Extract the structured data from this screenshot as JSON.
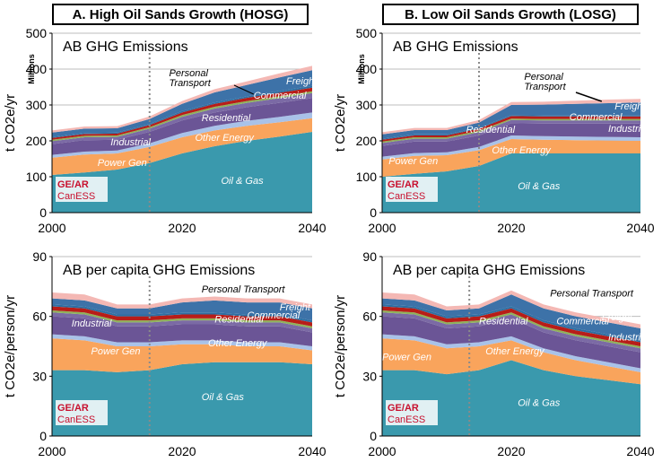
{
  "panel_titles": {
    "a": "A. High Oil Sands Growth (HOSG)",
    "b": "B. Low Oil Sands Growth (LOSG)"
  },
  "logo": {
    "line1": "GE/AR",
    "line2": "CanESS"
  },
  "colors": {
    "oil_gas": "#3a99ad",
    "power_gen": "#f9a45c",
    "other_energy": "#a9c2e8",
    "industrial": "#6b5596",
    "residential": "#7b6aa5",
    "green": "#8fb25a",
    "red": "#b81d18",
    "commercial": "#2e6fa2",
    "freight": "#3d72a8",
    "personal_transport": "#f4b8b4"
  },
  "chart_data": [
    {
      "id": "A-top",
      "type": "area",
      "stacked": true,
      "title": "AB GHG Emissions",
      "ylabel": "t CO2e/yr",
      "yunit": "Millions",
      "xlim": [
        2000,
        2040
      ],
      "ylim": [
        0,
        500
      ],
      "xticks": [
        2000,
        2020,
        2040
      ],
      "yticks": [
        0,
        100,
        200,
        300,
        400,
        500
      ],
      "vline_x": 2015,
      "x": [
        2000,
        2005,
        2010,
        2015,
        2020,
        2025,
        2030,
        2035,
        2040
      ],
      "series": [
        {
          "name": "Oil & Gas",
          "values": [
            105,
            112,
            120,
            138,
            165,
            185,
            200,
            212,
            225
          ]
        },
        {
          "name": "Power Gen",
          "values": [
            48,
            50,
            45,
            45,
            45,
            44,
            42,
            40,
            38
          ]
        },
        {
          "name": "Other Energy",
          "values": [
            8,
            8,
            8,
            10,
            12,
            13,
            14,
            15,
            16
          ]
        },
        {
          "name": "Industrial",
          "values": [
            30,
            32,
            30,
            32,
            35,
            37,
            38,
            39,
            40
          ]
        },
        {
          "name": "Residential",
          "values": [
            8,
            8,
            8,
            9,
            10,
            11,
            12,
            13,
            14
          ]
        },
        {
          "name": "",
          "values": [
            4,
            4,
            4,
            4,
            5,
            5,
            5,
            5,
            5
          ]
        },
        {
          "name": "",
          "values": [
            5,
            5,
            5,
            6,
            7,
            8,
            9,
            10,
            10
          ]
        },
        {
          "name": "Commercial",
          "values": [
            3,
            3,
            3,
            3,
            4,
            4,
            4,
            5,
            5
          ]
        },
        {
          "name": "Freight",
          "values": [
            12,
            12,
            12,
            14,
            20,
            28,
            32,
            38,
            44
          ]
        },
        {
          "name": "Personal Transport",
          "values": [
            6,
            6,
            6,
            7,
            8,
            9,
            10,
            11,
            12
          ]
        }
      ],
      "labels": [
        {
          "text": "Oil & Gas",
          "x": 2026,
          "y": 80,
          "color": "#ffffff"
        },
        {
          "text": "Power Gen",
          "x": 2007,
          "y": 130,
          "color": "#ffffff"
        },
        {
          "text": "Other Energy",
          "x": 2022,
          "y": 200,
          "color": "#ffffff"
        },
        {
          "text": "Industrial",
          "x": 2009,
          "y": 188,
          "color": "#ffffff"
        },
        {
          "text": "Residential",
          "x": 2023,
          "y": 255,
          "color": "#ffffff"
        },
        {
          "text": "Commercial",
          "x": 2031,
          "y": 318,
          "color": "#ffffff"
        },
        {
          "text": "Freight",
          "x": 2036,
          "y": 358,
          "color": "#ffffff"
        },
        {
          "text": "Personal",
          "x": 2018,
          "y": 380,
          "color": "#000000"
        },
        {
          "text": "Transport",
          "x": 2018,
          "y": 352,
          "color": "#000000"
        }
      ]
    },
    {
      "id": "B-top",
      "type": "area",
      "stacked": true,
      "title": "AB GHG Emissions",
      "ylabel": "t CO2e/yr",
      "yunit": "Millions",
      "xlim": [
        2000,
        2040
      ],
      "ylim": [
        0,
        500
      ],
      "xticks": [
        2000,
        2020,
        2040
      ],
      "yticks": [
        0,
        100,
        200,
        300,
        400,
        500
      ],
      "vline_x": 2015,
      "x": [
        2000,
        2005,
        2010,
        2015,
        2020,
        2025,
        2030,
        2035,
        2040
      ],
      "series": [
        {
          "name": "Oil & Gas",
          "values": [
            100,
            108,
            115,
            130,
            165,
            165,
            165,
            165,
            165
          ]
        },
        {
          "name": "Power Gen",
          "values": [
            48,
            50,
            45,
            44,
            40,
            38,
            37,
            36,
            35
          ]
        },
        {
          "name": "Other Energy",
          "values": [
            8,
            8,
            8,
            9,
            10,
            10,
            10,
            10,
            10
          ]
        },
        {
          "name": "Industrial",
          "values": [
            30,
            32,
            30,
            32,
            34,
            35,
            36,
            37,
            38
          ]
        },
        {
          "name": "Residential",
          "values": [
            8,
            8,
            8,
            9,
            9,
            9,
            9,
            9,
            9
          ]
        },
        {
          "name": "",
          "values": [
            4,
            4,
            4,
            4,
            4,
            4,
            4,
            4,
            4
          ]
        },
        {
          "name": "",
          "values": [
            5,
            5,
            5,
            6,
            7,
            7,
            7,
            7,
            7
          ]
        },
        {
          "name": "Commercial",
          "values": [
            3,
            3,
            3,
            3,
            3,
            3,
            3,
            3,
            3
          ]
        },
        {
          "name": "Freight",
          "values": [
            12,
            12,
            12,
            14,
            28,
            30,
            32,
            34,
            36
          ]
        },
        {
          "name": "Personal Transport",
          "values": [
            6,
            6,
            6,
            7,
            8,
            8,
            9,
            10,
            10
          ]
        }
      ],
      "labels": [
        {
          "text": "Oil & Gas",
          "x": 2021,
          "y": 65,
          "color": "#ffffff"
        },
        {
          "text": "Power Gen",
          "x": 2001,
          "y": 135,
          "color": "#ffffff"
        },
        {
          "text": "Other Energy",
          "x": 2017,
          "y": 165,
          "color": "#ffffff"
        },
        {
          "text": "Industrial",
          "x": 2035,
          "y": 225,
          "color": "#ffffff"
        },
        {
          "text": "Residential",
          "x": 2013,
          "y": 222,
          "color": "#ffffff"
        },
        {
          "text": "Commercial",
          "x": 2029,
          "y": 258,
          "color": "#ffffff"
        },
        {
          "text": "Freight",
          "x": 2036,
          "y": 288,
          "color": "#ffffff"
        },
        {
          "text": "Personal",
          "x": 2022,
          "y": 370,
          "color": "#000000"
        },
        {
          "text": "Transport",
          "x": 2022,
          "y": 342,
          "color": "#000000"
        }
      ]
    },
    {
      "id": "A-bottom",
      "type": "area",
      "stacked": true,
      "title": "AB per capita GHG Emissions",
      "ylabel": "t CO2e/person/yr",
      "xlim": [
        2000,
        2040
      ],
      "ylim": [
        0,
        90
      ],
      "xticks": [
        2000,
        2020,
        2040
      ],
      "yticks": [
        0,
        30,
        60,
        90
      ],
      "vline_x": 2015,
      "x": [
        2000,
        2005,
        2010,
        2015,
        2020,
        2025,
        2030,
        2035,
        2040
      ],
      "series": [
        {
          "name": "Oil & Gas",
          "values": [
            33,
            33,
            32,
            33,
            36,
            37,
            37,
            37,
            36
          ]
        },
        {
          "name": "Power Gen",
          "values": [
            16,
            15,
            13,
            12,
            10,
            9,
            8,
            8,
            7
          ]
        },
        {
          "name": "Other Energy",
          "values": [
            2,
            2,
            2,
            2,
            2,
            2,
            2,
            2,
            2
          ]
        },
        {
          "name": "Industrial",
          "values": [
            9,
            9,
            8,
            8,
            8,
            8,
            8,
            8,
            7
          ]
        },
        {
          "name": "Residential",
          "values": [
            2,
            2,
            2,
            2,
            2,
            2,
            2,
            2,
            2
          ]
        },
        {
          "name": "",
          "values": [
            1,
            1,
            1,
            1,
            1,
            1,
            1,
            1,
            1
          ]
        },
        {
          "name": "",
          "values": [
            2,
            2,
            2,
            2,
            2,
            2,
            2,
            2,
            2
          ]
        },
        {
          "name": "Commercial",
          "values": [
            1,
            1,
            1,
            1,
            1,
            1,
            1,
            1,
            1
          ]
        },
        {
          "name": "Freight",
          "values": [
            3,
            3,
            3,
            3,
            5,
            6,
            6,
            6,
            6
          ]
        },
        {
          "name": "Personal Transport",
          "values": [
            3,
            3,
            2,
            2,
            2,
            2,
            2,
            2,
            2
          ]
        }
      ],
      "labels": [
        {
          "text": "Oil & Gas",
          "x": 2023,
          "y": 18,
          "color": "#ffffff"
        },
        {
          "text": "Power Gen",
          "x": 2006,
          "y": 41,
          "color": "#ffffff"
        },
        {
          "text": "Other Energy",
          "x": 2024,
          "y": 45,
          "color": "#ffffff"
        },
        {
          "text": "Industrial",
          "x": 2003,
          "y": 55,
          "color": "#ffffff"
        },
        {
          "text": "Residential",
          "x": 2025,
          "y": 57,
          "color": "#ffffff"
        },
        {
          "text": "Commercial",
          "x": 2030,
          "y": 59,
          "color": "#ffffff"
        },
        {
          "text": "Freight",
          "x": 2035,
          "y": 63,
          "color": "#ffffff"
        },
        {
          "text": "Personal Transport",
          "x": 2023,
          "y": 72,
          "color": "#000000"
        }
      ]
    },
    {
      "id": "B-bottom",
      "type": "area",
      "stacked": true,
      "title": "AB per capita GHG Emissions",
      "ylabel": "t CO2e/person/yr",
      "xlim": [
        2000,
        2040
      ],
      "ylim": [
        0,
        90
      ],
      "xticks": [
        2000,
        2020,
        2040
      ],
      "yticks": [
        0,
        30,
        60,
        90
      ],
      "vline_x": 2013.5,
      "x": [
        2000,
        2005,
        2010,
        2015,
        2020,
        2025,
        2030,
        2035,
        2040
      ],
      "series": [
        {
          "name": "Oil & Gas",
          "values": [
            33,
            33,
            31,
            33,
            38,
            33,
            30,
            28,
            26
          ]
        },
        {
          "name": "Power Gen",
          "values": [
            16,
            15,
            13,
            12,
            10,
            9,
            8,
            7,
            6
          ]
        },
        {
          "name": "Other Energy",
          "values": [
            2,
            2,
            2,
            2,
            2,
            2,
            2,
            2,
            2
          ]
        },
        {
          "name": "Industrial",
          "values": [
            9,
            9,
            8,
            8,
            9,
            8,
            8,
            8,
            8
          ]
        },
        {
          "name": "Residential",
          "values": [
            2,
            2,
            2,
            2,
            2,
            2,
            2,
            2,
            2
          ]
        },
        {
          "name": "",
          "values": [
            1,
            1,
            1,
            1,
            1,
            1,
            1,
            1,
            1
          ]
        },
        {
          "name": "",
          "values": [
            2,
            2,
            2,
            2,
            2,
            2,
            2,
            2,
            2
          ]
        },
        {
          "name": "Commercial",
          "values": [
            1,
            1,
            1,
            1,
            1,
            1,
            1,
            1,
            1
          ]
        },
        {
          "name": "Freight",
          "values": [
            3,
            3,
            3,
            3,
            6,
            6,
            6,
            6,
            6
          ]
        },
        {
          "name": "Personal Transport",
          "values": [
            3,
            3,
            2,
            2,
            2,
            2,
            2,
            2,
            2
          ]
        }
      ],
      "labels": [
        {
          "text": "Oil & Gas",
          "x": 2021,
          "y": 15,
          "color": "#ffffff"
        },
        {
          "text": "Power Gen",
          "x": 2000,
          "y": 38,
          "color": "#ffffff"
        },
        {
          "text": "Other Energy",
          "x": 2016,
          "y": 41,
          "color": "#ffffff"
        },
        {
          "text": "Industrial",
          "x": 2035,
          "y": 48,
          "color": "#ffffff"
        },
        {
          "text": "Residential",
          "x": 2015,
          "y": 56,
          "color": "#ffffff"
        },
        {
          "text": "Commercial",
          "x": 2027,
          "y": 56,
          "color": "#ffffff"
        },
        {
          "text": "Freight",
          "x": 2034,
          "y": 58,
          "color": "#ffffff"
        },
        {
          "text": "Personal Transport",
          "x": 2026,
          "y": 70,
          "color": "#000000"
        }
      ]
    }
  ]
}
